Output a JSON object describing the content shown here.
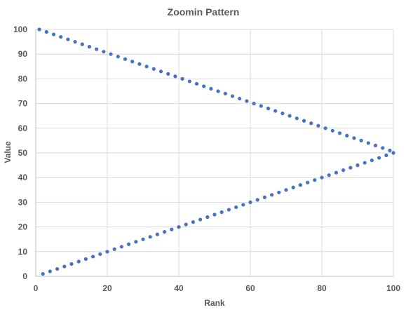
{
  "chart_data": {
    "type": "scatter",
    "title": "Zoomin Pattern",
    "xlabel": "Rank",
    "ylabel": "Value",
    "xlim": [
      0,
      100
    ],
    "ylim": [
      0,
      100
    ],
    "xticks": [
      0,
      20,
      40,
      60,
      80,
      100
    ],
    "yticks": [
      0,
      10,
      20,
      30,
      40,
      50,
      60,
      70,
      80,
      90,
      100
    ],
    "grid": true,
    "legend": "none",
    "marker_color": "#4472C4",
    "series": [
      {
        "x": [
          1,
          3,
          5,
          7,
          9,
          11,
          13,
          15,
          17,
          19,
          21,
          23,
          25,
          27,
          29,
          31,
          33,
          35,
          37,
          39,
          41,
          43,
          45,
          47,
          49,
          51,
          53,
          55,
          57,
          59,
          61,
          63,
          65,
          67,
          69,
          71,
          73,
          75,
          77,
          79,
          81,
          83,
          85,
          87,
          89,
          91,
          93,
          95,
          97,
          99
        ],
        "values": [
          100,
          99,
          98,
          97,
          96,
          95,
          94,
          93,
          92,
          91,
          90,
          89,
          88,
          87,
          86,
          85,
          84,
          83,
          82,
          81,
          80,
          79,
          78,
          77,
          76,
          75,
          74,
          73,
          72,
          71,
          70,
          69,
          68,
          67,
          66,
          65,
          64,
          63,
          62,
          61,
          60,
          59,
          58,
          57,
          56,
          55,
          54,
          53,
          52,
          51
        ]
      },
      {
        "x": [
          2,
          4,
          6,
          8,
          10,
          12,
          14,
          16,
          18,
          20,
          22,
          24,
          26,
          28,
          30,
          32,
          34,
          36,
          38,
          40,
          42,
          44,
          46,
          48,
          50,
          52,
          54,
          56,
          58,
          60,
          62,
          64,
          66,
          68,
          70,
          72,
          74,
          76,
          78,
          80,
          82,
          84,
          86,
          88,
          90,
          92,
          94,
          96,
          98,
          100
        ],
        "values": [
          1,
          2,
          3,
          4,
          5,
          6,
          7,
          8,
          9,
          10,
          11,
          12,
          13,
          14,
          15,
          16,
          17,
          18,
          19,
          20,
          21,
          22,
          23,
          24,
          25,
          26,
          27,
          28,
          29,
          30,
          31,
          32,
          33,
          34,
          35,
          36,
          37,
          38,
          39,
          40,
          41,
          42,
          43,
          44,
          45,
          46,
          47,
          48,
          49,
          50
        ]
      }
    ]
  }
}
